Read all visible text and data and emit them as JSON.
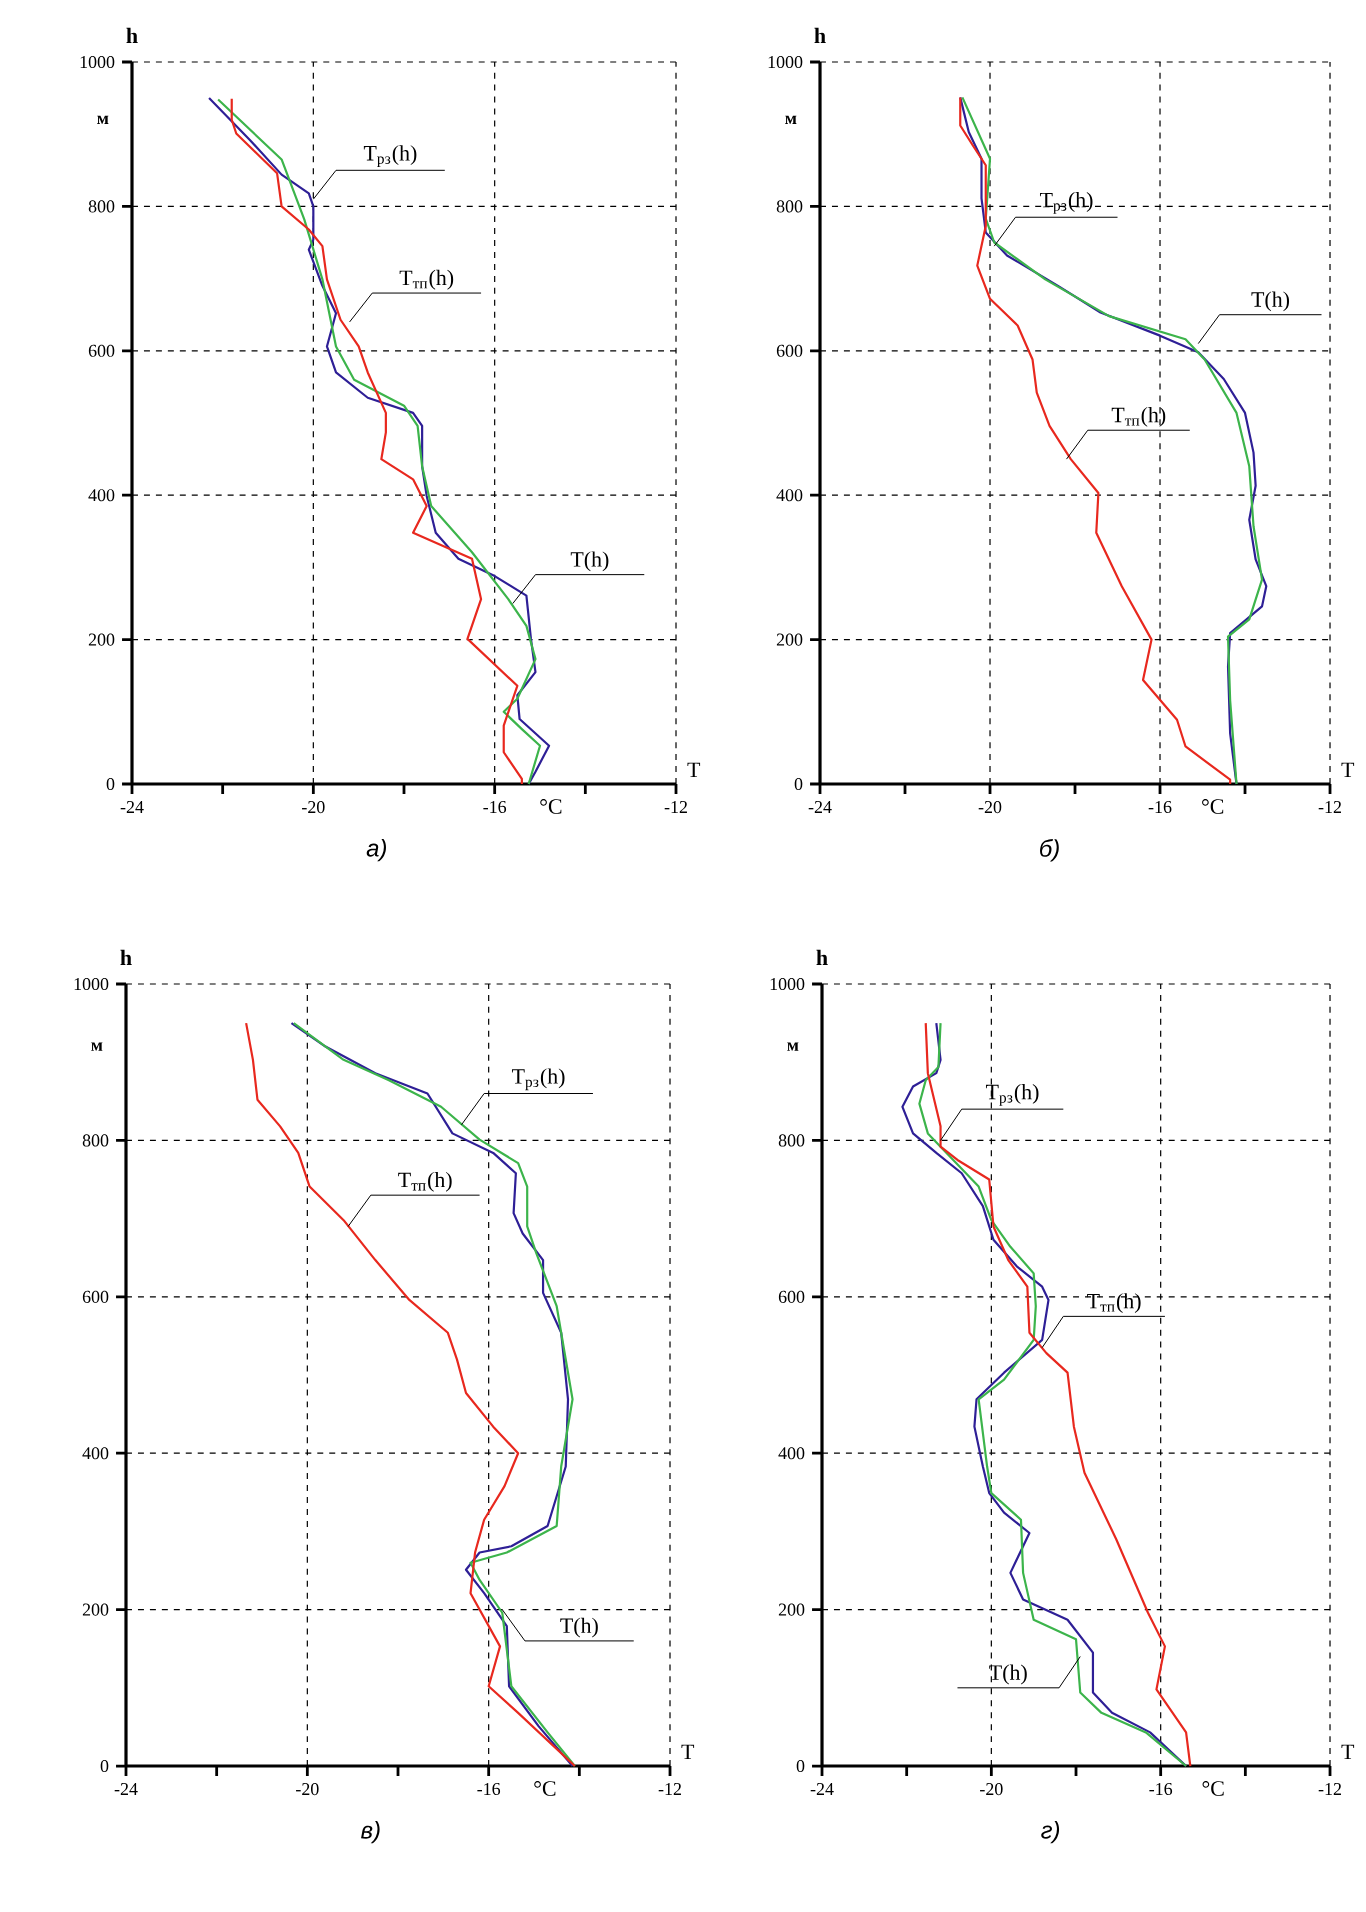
{
  "chart_data": [
    {
      "type": "line",
      "title": "а)",
      "xlabel": "T",
      "ylabel": "h",
      "xlim": [
        -24,
        -12
      ],
      "ylim": [
        0,
        1000
      ],
      "xticks": [
        -24,
        {
          "value": -22,
          "label": null
        },
        -20,
        {
          "value": -18,
          "label": null
        },
        -16,
        {
          "value": -14,
          "label": null
        },
        -12
      ],
      "yticks": [
        0,
        200,
        400,
        600,
        800,
        1000
      ],
      "grid": true,
      "line_style": "solid",
      "annotations": [
        "м",
        "°C",
        {
          "text": "T$_{рз}$(h)",
          "x": -20.0,
          "y": 810
        },
        {
          "text": "T$_{тп}$(h)",
          "x": -19.2,
          "y": 640
        },
        {
          "text": "T(h)",
          "x": -15.6,
          "y": 250
        }
      ],
      "series": [
        {
          "color": "#2e1f96",
          "x": [
            -22.3,
            -21.4,
            -20.7,
            -20.1,
            -20.0,
            -20.0,
            -20.1,
            -19.8,
            -19.5,
            -19.7,
            -19.5,
            -18.8,
            -17.8,
            -17.6,
            -17.6,
            -17.5,
            -17.3,
            -16.8,
            -16.0,
            -15.3,
            -15.2,
            -15.1,
            -15.5,
            -15.45,
            -14.8,
            -15.1,
            -15.25
          ],
          "values": [
            950,
            892,
            844,
            818,
            800,
            754,
            740,
            690,
            652,
            606,
            570,
            535,
            514,
            496,
            440,
            399,
            348,
            312,
            288,
            261,
            201,
            155,
            123,
            90,
            53,
            17,
            0
          ]
        },
        {
          "color": "#3cb44b",
          "x": [
            -22.1,
            -20.7,
            -20.2,
            -19.8,
            -19.5,
            -19.1,
            -18.0,
            -17.7,
            -17.6,
            -17.4,
            -16.5,
            -15.7,
            -15.3,
            -15.1,
            -15.5,
            -15.8,
            -15.4,
            -15.0,
            -15.25
          ],
          "values": [
            948,
            865,
            782,
            699,
            606,
            560,
            524,
            496,
            440,
            385,
            321,
            256,
            219,
            173,
            118,
            100,
            76,
            53,
            0
          ]
        },
        {
          "color": "#e8281e",
          "x": [
            -21.8,
            -21.8,
            -21.7,
            -20.8,
            -20.7,
            -20.1,
            -19.8,
            -19.7,
            -19.4,
            -19.0,
            -18.8,
            -18.4,
            -18.4,
            -18.5,
            -17.8,
            -17.5,
            -17.8,
            -16.5,
            -16.3,
            -16.6,
            -15.5,
            -15.8,
            -15.8,
            -15.4,
            -15.4
          ],
          "values": [
            949,
            920,
            901,
            846,
            800,
            768,
            745,
            699,
            643,
            606,
            570,
            514,
            487,
            450,
            422,
            385,
            348,
            312,
            256,
            201,
            136,
            81,
            44,
            7,
            0
          ]
        }
      ]
    },
    {
      "type": "line",
      "title": "б)",
      "xlabel": "T",
      "ylabel": "h",
      "xlim": [
        -24,
        -12
      ],
      "ylim": [
        0,
        1000
      ],
      "xticks": [
        -24,
        {
          "value": -22,
          "label": null
        },
        -20,
        {
          "value": -18,
          "label": null
        },
        -16,
        {
          "value": -14,
          "label": null
        },
        -12
      ],
      "yticks": [
        0,
        200,
        400,
        600,
        800,
        1000
      ],
      "grid": true,
      "line_style": "solid",
      "annotations": [
        "м",
        "°C",
        {
          "text": "T$_{рз}$(h)",
          "x": -19.9,
          "y": 745
        },
        {
          "text": "T(h)",
          "x": -15.1,
          "y": 610
        },
        {
          "text": "T$_{тп}$(h)",
          "x": -18.2,
          "y": 450
        }
      ],
      "series": [
        {
          "color": "#2e1f96",
          "x": [
            -20.7,
            -20.5,
            -20.2,
            -20.2,
            -20.1,
            -19.6,
            -18.4,
            -17.4,
            -16.0,
            -15.1,
            -14.5,
            -14.0,
            -13.8,
            -13.75,
            -13.9,
            -13.75,
            -13.5,
            -13.6,
            -14.35,
            -14.4,
            -14.35,
            -14.2
          ],
          "values": [
            951,
            903,
            866,
            811,
            764,
            732,
            690,
            653,
            621,
            598,
            561,
            514,
            459,
            413,
            366,
            311,
            274,
            246,
            209,
            163,
            70,
            0
          ]
        },
        {
          "color": "#3cb44b",
          "x": [
            -20.65,
            -20.0,
            -20.1,
            -19.9,
            -18.7,
            -17.2,
            -15.4,
            -14.95,
            -14.2,
            -13.9,
            -13.8,
            -13.6,
            -13.9,
            -14.4,
            -14.35,
            -14.2
          ],
          "values": [
            951,
            866,
            783,
            750,
            699,
            648,
            616,
            588,
            514,
            440,
            357,
            283,
            228,
            204,
            116,
            0
          ]
        },
        {
          "color": "#e8281e",
          "x": [
            -20.7,
            -20.7,
            -20.4,
            -20.1,
            -20.1,
            -20.3,
            -20.0,
            -19.35,
            -19.0,
            -18.9,
            -18.6,
            -18.1,
            -17.45,
            -17.5,
            -16.9,
            -16.2,
            -16.4,
            -15.6,
            -15.4,
            -14.35,
            -14.35
          ],
          "values": [
            951,
            912,
            884,
            857,
            773,
            718,
            672,
            635,
            588,
            542,
            496,
            450,
            403,
            348,
            274,
            200,
            144,
            89,
            52,
            6,
            0
          ]
        }
      ]
    },
    {
      "type": "line",
      "title": "в)",
      "xlabel": "T",
      "ylabel": "h",
      "xlim": [
        -24,
        -12
      ],
      "ylim": [
        0,
        1000
      ],
      "xticks": [
        -24,
        {
          "value": -22,
          "label": null
        },
        -20,
        {
          "value": -18,
          "label": null
        },
        -16,
        {
          "value": -14,
          "label": null
        },
        -12
      ],
      "yticks": [
        0,
        200,
        400,
        600,
        800,
        1000
      ],
      "grid": true,
      "line_style": "solid",
      "annotations": [
        "м",
        "°C",
        {
          "text": "T$_{рз}$(h)",
          "x": -16.6,
          "y": 820
        },
        {
          "text": "T$_{тп}$(h)",
          "x": -19.1,
          "y": 690
        },
        {
          "text": "T(h)",
          "x": -15.7,
          "y": 200
        }
      ],
      "series": [
        {
          "color": "#2e1f96",
          "x": [
            -20.35,
            -19.6,
            -18.5,
            -17.35,
            -16.8,
            -15.9,
            -15.4,
            -15.45,
            -15.25,
            -14.8,
            -14.8,
            -14.4,
            -14.25,
            -14.3,
            -14.7,
            -15.5,
            -16.2,
            -16.5,
            -16.1,
            -15.6,
            -15.55,
            -14.9,
            -14.15
          ],
          "values": [
            950,
            920,
            886,
            860,
            809,
            784,
            758,
            707,
            681,
            647,
            605,
            554,
            469,
            383,
            307,
            281,
            273,
            251,
            221,
            179,
            102,
            51,
            0
          ]
        },
        {
          "color": "#3cb44b",
          "x": [
            -20.3,
            -19.2,
            -18.2,
            -17.05,
            -16.2,
            -15.35,
            -15.15,
            -15.15,
            -14.95,
            -14.5,
            -14.15,
            -14.4,
            -14.5,
            -15.6,
            -16.4,
            -16.2,
            -15.7,
            -15.5,
            -14.7,
            -14.1
          ],
          "values": [
            950,
            903,
            877,
            843,
            801,
            771,
            741,
            690,
            656,
            588,
            469,
            383,
            307,
            273,
            260,
            238,
            196,
            102,
            43,
            0
          ]
        },
        {
          "color": "#e8281e",
          "x": [
            -21.35,
            -21.2,
            -21.1,
            -20.6,
            -20.2,
            -19.95,
            -19.2,
            -18.5,
            -17.75,
            -16.9,
            -16.7,
            -16.5,
            -15.9,
            -15.35,
            -15.65,
            -16.1,
            -16.3,
            -16.4,
            -15.75,
            -16.0,
            -15.35,
            -14.1
          ],
          "values": [
            950,
            903,
            852,
            818,
            784,
            741,
            698,
            647,
            596,
            554,
            520,
            477,
            434,
            400,
            358,
            315,
            273,
            221,
            153,
            102,
            68,
            0
          ]
        }
      ]
    },
    {
      "type": "line",
      "title": "г)",
      "xlabel": "T",
      "ylabel": "h",
      "xlim": [
        -24,
        -12
      ],
      "ylim": [
        0,
        1000
      ],
      "xticks": [
        -24,
        {
          "value": -22,
          "label": null
        },
        -20,
        {
          "value": -18,
          "label": null
        },
        -16,
        {
          "value": -14,
          "label": null
        },
        -12
      ],
      "yticks": [
        0,
        200,
        400,
        600,
        800,
        1000
      ],
      "grid": true,
      "line_style": "solid",
      "annotations": [
        "м",
        "°C",
        {
          "text": "T$_{рз}$(h)",
          "x": -21.2,
          "y": 800
        },
        {
          "text": "T$_{тп}$(h)",
          "x": -18.8,
          "y": 535
        },
        {
          "text": "T(h)",
          "x": -17.9,
          "y": 140
        }
      ],
      "series": [
        {
          "color": "#2e1f96",
          "x": [
            -21.3,
            -21.2,
            -21.3,
            -21.85,
            -22.1,
            -21.85,
            -21.3,
            -20.7,
            -20.2,
            -19.95,
            -19.4,
            -18.8,
            -18.65,
            -18.8,
            -19.7,
            -20.35,
            -20.4,
            -20.2,
            -20.05,
            -19.7,
            -19.1,
            -19.4,
            -19.55,
            -19.25,
            -18.2,
            -17.6,
            -17.6,
            -17.15,
            -16.25,
            -15.4
          ],
          "values": [
            950,
            903,
            886,
            869,
            843,
            809,
            784,
            758,
            716,
            673,
            639,
            613,
            596,
            545,
            503,
            469,
            434,
            383,
            349,
            324,
            298,
            264,
            247,
            213,
            187,
            145,
            94,
            68,
            43,
            0
          ]
        },
        {
          "color": "#3cb44b",
          "x": [
            -21.2,
            -21.25,
            -21.55,
            -21.7,
            -21.5,
            -20.9,
            -20.3,
            -20.0,
            -19.55,
            -19.0,
            -18.95,
            -19.0,
            -19.7,
            -20.3,
            -20.1,
            -20.0,
            -19.3,
            -19.25,
            -19.0,
            -18.0,
            -17.9,
            -17.4,
            -16.35,
            -15.4
          ],
          "values": [
            950,
            894,
            877,
            847,
            809,
            775,
            741,
            698,
            664,
            630,
            588,
            545,
            494,
            469,
            383,
            349,
            315,
            247,
            187,
            162,
            94,
            68,
            43,
            0
          ]
        },
        {
          "color": "#e8281e",
          "x": [
            -21.55,
            -21.5,
            -21.2,
            -21.2,
            -20.8,
            -20.05,
            -19.95,
            -19.6,
            -19.15,
            -19.1,
            -18.7,
            -18.2,
            -18.05,
            -17.8,
            -17.05,
            -16.3,
            -15.9,
            -16.1,
            -15.4,
            -15.3
          ],
          "values": [
            950,
            886,
            818,
            792,
            775,
            750,
            690,
            647,
            613,
            554,
            528,
            503,
            434,
            375,
            290,
            196,
            153,
            98,
            43,
            0
          ]
        }
      ]
    }
  ]
}
